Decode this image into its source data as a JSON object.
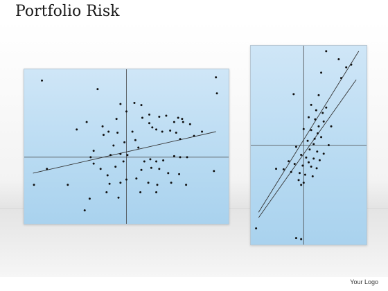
{
  "header": {
    "title": "Portfolio Risk"
  },
  "footer": {
    "logo_text": "Your Logo"
  },
  "colors": {
    "panel_fill": "#b9dbf2",
    "point": "#111111",
    "line": "#333333"
  },
  "chart_data": [
    {
      "type": "scatter",
      "title": "",
      "xlabel": "",
      "ylabel": "",
      "xlim": [
        -10,
        10
      ],
      "ylim": [
        -6,
        8
      ],
      "axes_origin": [
        0,
        0
      ],
      "grid": false,
      "points": [
        [
          -8.5,
          7.2
        ],
        [
          -2.9,
          6.4
        ],
        [
          -0.6,
          5.0
        ],
        [
          0.8,
          5.1
        ],
        [
          1.5,
          4.9
        ],
        [
          0.0,
          4.3
        ],
        [
          -4.0,
          3.3
        ],
        [
          -1.0,
          3.6
        ],
        [
          1.6,
          3.7
        ],
        [
          2.3,
          4.0
        ],
        [
          3.3,
          3.8
        ],
        [
          4.0,
          3.9
        ],
        [
          5.2,
          3.7
        ],
        [
          5.7,
          3.3
        ],
        [
          6.4,
          3.1
        ],
        [
          5.6,
          3.6
        ],
        [
          4.8,
          3.3
        ],
        [
          9.1,
          6.0
        ],
        [
          9.0,
          7.5
        ],
        [
          -1.8,
          2.4
        ],
        [
          -2.3,
          2.1
        ],
        [
          -0.9,
          2.3
        ],
        [
          0.6,
          2.4
        ],
        [
          2.3,
          3.2
        ],
        [
          3.0,
          2.6
        ],
        [
          3.6,
          2.4
        ],
        [
          5.0,
          2.3
        ],
        [
          5.4,
          1.7
        ],
        [
          -3.6,
          0.0
        ],
        [
          -1.6,
          0.2
        ],
        [
          -0.6,
          0.3
        ],
        [
          0.1,
          0.2
        ],
        [
          1.8,
          -0.4
        ],
        [
          2.4,
          -0.2
        ],
        [
          3.0,
          -0.4
        ],
        [
          3.7,
          -0.3
        ],
        [
          4.8,
          0.1
        ],
        [
          5.4,
          0.0
        ],
        [
          6.1,
          0.0
        ],
        [
          -3.3,
          -0.6
        ],
        [
          -1.1,
          -0.9
        ],
        [
          -0.3,
          -0.4
        ],
        [
          1.5,
          -1.2
        ],
        [
          2.5,
          -1.0
        ],
        [
          3.3,
          -1.1
        ],
        [
          4.2,
          -1.5
        ],
        [
          5.3,
          -1.6
        ],
        [
          8.8,
          -1.3
        ],
        [
          -8.0,
          -1.1
        ],
        [
          -1.9,
          -1.7
        ],
        [
          -0.6,
          -2.4
        ],
        [
          0.0,
          -2.1
        ],
        [
          1.0,
          -2.0
        ],
        [
          2.2,
          -2.4
        ],
        [
          3.1,
          -2.6
        ],
        [
          4.5,
          -2.4
        ],
        [
          6.0,
          -2.6
        ],
        [
          -5.9,
          -2.6
        ],
        [
          -1.7,
          -2.5
        ],
        [
          -2.0,
          -3.3
        ],
        [
          -9.3,
          -2.6
        ],
        [
          1.4,
          -3.3
        ],
        [
          3.0,
          -3.3
        ],
        [
          -3.7,
          -3.9
        ],
        [
          -0.8,
          -3.8
        ],
        [
          -4.2,
          -5.0
        ],
        [
          -5.0,
          2.6
        ],
        [
          -2.4,
          2.9
        ],
        [
          -3.3,
          0.6
        ],
        [
          -0.2,
          1.4
        ],
        [
          0.9,
          1.6
        ],
        [
          2.6,
          2.8
        ],
        [
          4.4,
          2.5
        ],
        [
          -1.3,
          1.1
        ],
        [
          6.8,
          2.0
        ],
        [
          -2.6,
          -1.1
        ],
        [
          7.6,
          2.4
        ],
        [
          1.2,
          0.9
        ]
      ],
      "trend_lines": [
        {
          "x": [
            -9.4,
            9.0
          ],
          "y": [
            -1.5,
            2.4
          ]
        }
      ]
    },
    {
      "type": "scatter",
      "title": "",
      "xlabel": "",
      "ylabel": "",
      "xlim": [
        -10,
        12
      ],
      "ylim": [
        -18,
        18
      ],
      "axes_origin": [
        0,
        0
      ],
      "grid": false,
      "points": [
        [
          4.5,
          17.5
        ],
        [
          7.0,
          16.0
        ],
        [
          8.5,
          14.5
        ],
        [
          9.5,
          15.0
        ],
        [
          3.5,
          13.5
        ],
        [
          7.5,
          12.5
        ],
        [
          -2.0,
          9.5
        ],
        [
          3.0,
          9.3
        ],
        [
          1.5,
          7.5
        ],
        [
          4.5,
          7.0
        ],
        [
          2.5,
          6.5
        ],
        [
          3.8,
          6.0
        ],
        [
          1.0,
          5.2
        ],
        [
          2.3,
          4.8
        ],
        [
          4.0,
          4.4
        ],
        [
          5.5,
          3.5
        ],
        [
          0.0,
          3.0
        ],
        [
          1.5,
          2.8
        ],
        [
          2.8,
          2.2
        ],
        [
          3.5,
          1.5
        ],
        [
          0.8,
          0.8
        ],
        [
          2.0,
          0.2
        ],
        [
          5.0,
          0.0
        ],
        [
          -1.5,
          -0.3
        ],
        [
          1.2,
          -0.8
        ],
        [
          2.7,
          -1.2
        ],
        [
          4.0,
          -1.6
        ],
        [
          -0.5,
          -1.8
        ],
        [
          0.5,
          -2.3
        ],
        [
          2.0,
          -2.5
        ],
        [
          3.2,
          -2.8
        ],
        [
          -3.0,
          -3.0
        ],
        [
          -1.8,
          -3.5
        ],
        [
          -0.2,
          -3.8
        ],
        [
          1.5,
          -4.0
        ],
        [
          2.6,
          -4.3
        ],
        [
          -5.5,
          -4.4
        ],
        [
          -4.0,
          -4.5
        ],
        [
          -2.5,
          -5.0
        ],
        [
          0.3,
          -5.5
        ],
        [
          1.8,
          -5.8
        ],
        [
          -1.0,
          -6.5
        ],
        [
          0.0,
          -7.0
        ],
        [
          -0.5,
          -7.4
        ],
        [
          -9.5,
          -15.5
        ],
        [
          -1.5,
          -17.3
        ],
        [
          -0.5,
          -17.5
        ],
        [
          1.0,
          -3.2
        ],
        [
          2.2,
          1.2
        ],
        [
          -0.8,
          -5.2
        ],
        [
          3.0,
          3.5
        ]
      ],
      "trend_lines": [
        {
          "x": [
            -9.0,
            11.0
          ],
          "y": [
            -12.5,
            17.5
          ]
        },
        {
          "x": [
            -9.0,
            10.5
          ],
          "y": [
            -13.5,
            12.2
          ]
        }
      ]
    }
  ]
}
